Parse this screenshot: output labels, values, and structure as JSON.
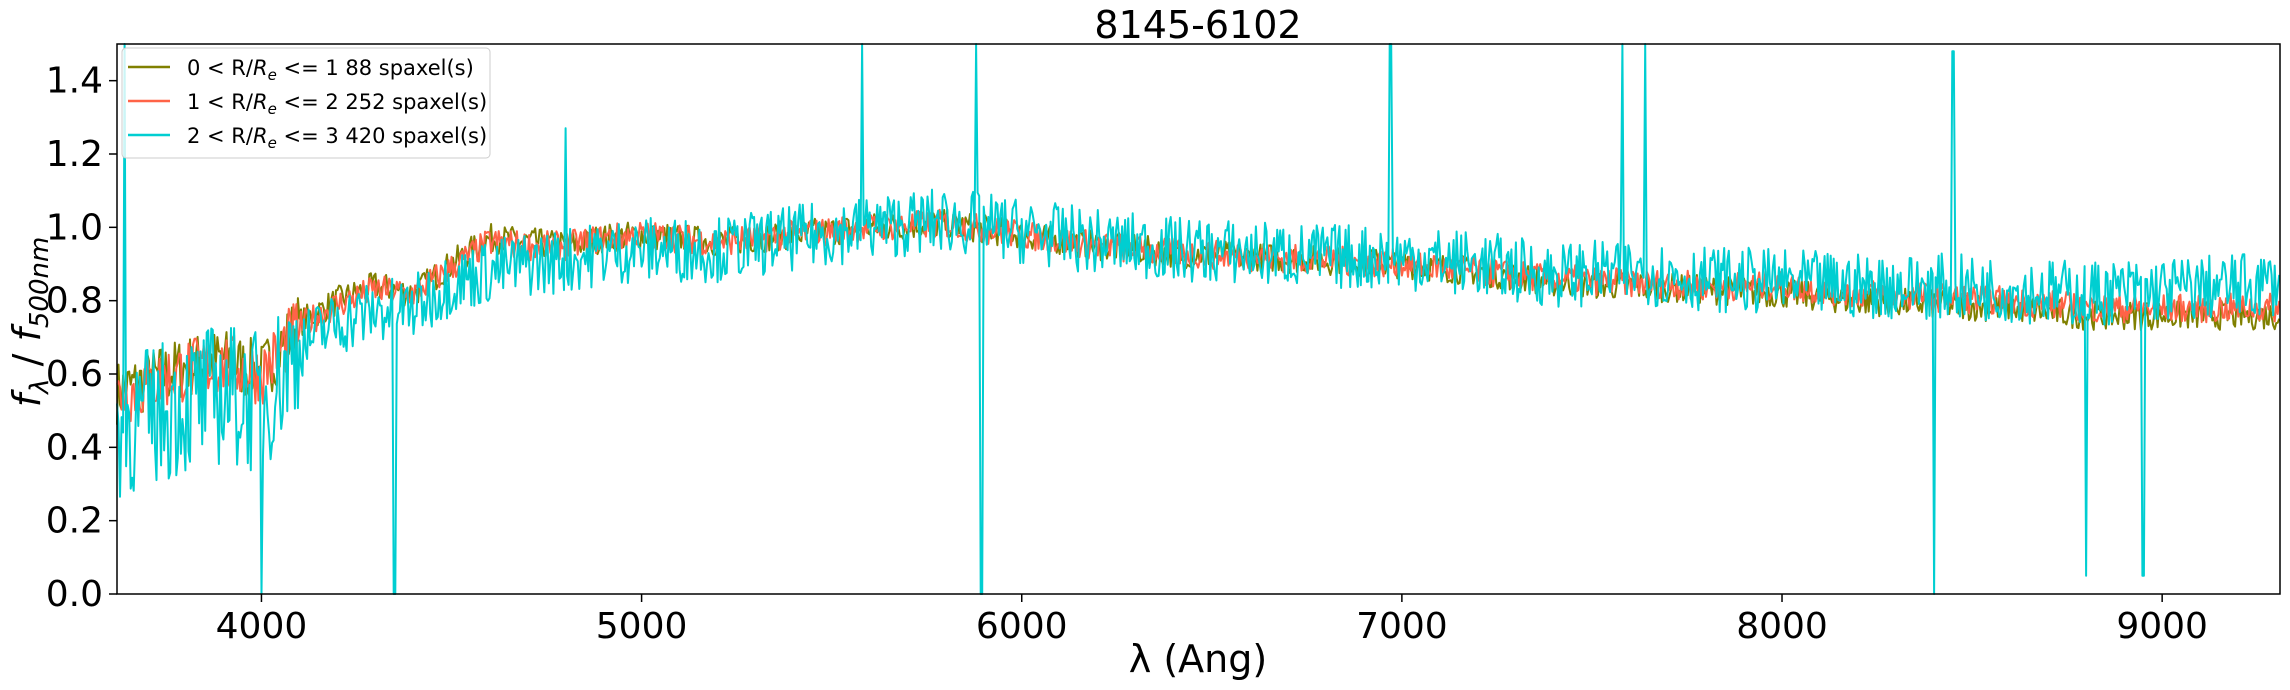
{
  "chart_data": {
    "type": "line",
    "title": "8145-6102",
    "xlabel": "λ (Ang)",
    "ylabel": "fλ / f500nm",
    "xlim": [
      3620,
      9310
    ],
    "ylim": [
      0.0,
      1.5
    ],
    "xticks": [
      4000,
      5000,
      6000,
      7000,
      8000,
      9000
    ],
    "yticks": [
      0.0,
      0.2,
      0.4,
      0.6,
      0.8,
      1.0,
      1.2,
      1.4
    ],
    "legend_position": "top-left",
    "grid": false,
    "series": [
      {
        "name": "0 < R/Re <= 1 88 spaxel(s)",
        "label_parts": [
          "0 < R/",
          "R",
          "e",
          " <= 1 88 spaxel(s)"
        ],
        "color": "#808000",
        "points": [
          [
            3620,
            0.55
          ],
          [
            3700,
            0.58
          ],
          [
            3800,
            0.62
          ],
          [
            3900,
            0.64
          ],
          [
            4000,
            0.6
          ],
          [
            4100,
            0.74
          ],
          [
            4200,
            0.8
          ],
          [
            4300,
            0.84
          ],
          [
            4400,
            0.82
          ],
          [
            4500,
            0.9
          ],
          [
            4600,
            0.97
          ],
          [
            4700,
            0.96
          ],
          [
            4800,
            0.95
          ],
          [
            4900,
            0.97
          ],
          [
            5000,
            0.98
          ],
          [
            5200,
            0.96
          ],
          [
            5400,
            0.98
          ],
          [
            5600,
            1.0
          ],
          [
            5800,
            1.01
          ],
          [
            6000,
            0.98
          ],
          [
            6200,
            0.95
          ],
          [
            6400,
            0.93
          ],
          [
            6600,
            0.92
          ],
          [
            6800,
            0.91
          ],
          [
            7000,
            0.9
          ],
          [
            7200,
            0.88
          ],
          [
            7400,
            0.85
          ],
          [
            7600,
            0.84
          ],
          [
            7800,
            0.83
          ],
          [
            8000,
            0.82
          ],
          [
            8200,
            0.8
          ],
          [
            8400,
            0.79
          ],
          [
            8600,
            0.78
          ],
          [
            8800,
            0.76
          ],
          [
            9000,
            0.76
          ],
          [
            9200,
            0.76
          ],
          [
            9310,
            0.76
          ]
        ]
      },
      {
        "name": "1 < R/Re <= 2 252 spaxel(s)",
        "label_parts": [
          "1 < R/",
          "R",
          "e",
          " <= 2 252 spaxel(s)"
        ],
        "color": "#ff6347",
        "points": [
          [
            3620,
            0.54
          ],
          [
            3700,
            0.57
          ],
          [
            3800,
            0.61
          ],
          [
            3900,
            0.63
          ],
          [
            4000,
            0.6
          ],
          [
            4100,
            0.73
          ],
          [
            4200,
            0.79
          ],
          [
            4300,
            0.83
          ],
          [
            4400,
            0.82
          ],
          [
            4500,
            0.89
          ],
          [
            4600,
            0.96
          ],
          [
            4700,
            0.95
          ],
          [
            4800,
            0.95
          ],
          [
            4900,
            0.97
          ],
          [
            5000,
            0.98
          ],
          [
            5200,
            0.96
          ],
          [
            5400,
            0.98
          ],
          [
            5600,
            1.0
          ],
          [
            5800,
            1.01
          ],
          [
            6000,
            0.98
          ],
          [
            6200,
            0.95
          ],
          [
            6400,
            0.93
          ],
          [
            6600,
            0.92
          ],
          [
            6800,
            0.91
          ],
          [
            7000,
            0.9
          ],
          [
            7200,
            0.88
          ],
          [
            7400,
            0.86
          ],
          [
            7600,
            0.85
          ],
          [
            7800,
            0.84
          ],
          [
            8000,
            0.84
          ],
          [
            8200,
            0.82
          ],
          [
            8400,
            0.81
          ],
          [
            8600,
            0.8
          ],
          [
            8800,
            0.78
          ],
          [
            9000,
            0.78
          ],
          [
            9200,
            0.78
          ],
          [
            9310,
            0.78
          ]
        ]
      },
      {
        "name": "2 < R/Re <= 3 420 spaxel(s)",
        "label_parts": [
          "2 < R/",
          "R",
          "e",
          " <= 3 420 spaxel(s)"
        ],
        "color": "#00ced1",
        "points": [
          [
            3620,
            0.45
          ],
          [
            3700,
            0.48
          ],
          [
            3800,
            0.52
          ],
          [
            3900,
            0.55
          ],
          [
            4000,
            0.52
          ],
          [
            4100,
            0.68
          ],
          [
            4200,
            0.74
          ],
          [
            4300,
            0.77
          ],
          [
            4400,
            0.78
          ],
          [
            4500,
            0.85
          ],
          [
            4600,
            0.88
          ],
          [
            4700,
            0.9
          ],
          [
            4800,
            0.91
          ],
          [
            4900,
            0.93
          ],
          [
            5000,
            0.94
          ],
          [
            5200,
            0.94
          ],
          [
            5400,
            0.97
          ],
          [
            5600,
            1.0
          ],
          [
            5800,
            1.02
          ],
          [
            6000,
            0.99
          ],
          [
            6200,
            0.96
          ],
          [
            6400,
            0.94
          ],
          [
            6600,
            0.93
          ],
          [
            6800,
            0.92
          ],
          [
            7000,
            0.92
          ],
          [
            7200,
            0.9
          ],
          [
            7400,
            0.87
          ],
          [
            7600,
            0.88
          ],
          [
            7800,
            0.86
          ],
          [
            8000,
            0.85
          ],
          [
            8200,
            0.84
          ],
          [
            8400,
            0.84
          ],
          [
            8600,
            0.83
          ],
          [
            8800,
            0.82
          ],
          [
            9000,
            0.83
          ],
          [
            9200,
            0.84
          ],
          [
            9310,
            0.85
          ]
        ],
        "spikes": [
          [
            3640,
            1.5
          ],
          [
            4000,
            0.0
          ],
          [
            4350,
            0.0
          ],
          [
            4800,
            1.27
          ],
          [
            5580,
            1.5
          ],
          [
            5880,
            1.5
          ],
          [
            5895,
            0.0
          ],
          [
            6970,
            1.5
          ],
          [
            7580,
            1.5
          ],
          [
            7640,
            1.5
          ],
          [
            8400,
            0.0
          ],
          [
            8450,
            1.48
          ],
          [
            8800,
            0.05
          ],
          [
            8950,
            0.05
          ]
        ]
      }
    ]
  }
}
